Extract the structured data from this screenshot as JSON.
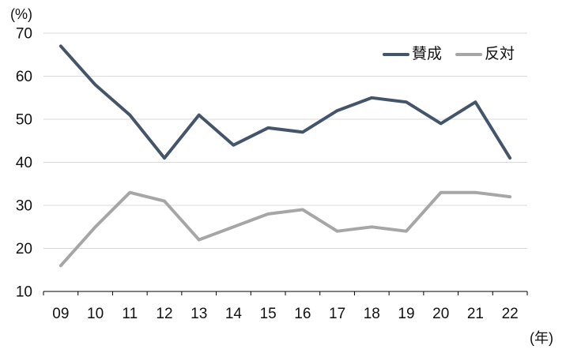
{
  "chart_data": {
    "type": "line",
    "categories": [
      "09",
      "10",
      "11",
      "12",
      "13",
      "14",
      "15",
      "16",
      "17",
      "18",
      "19",
      "20",
      "21",
      "22"
    ],
    "series": [
      {
        "name": "賛成",
        "color": "#44546A",
        "values": [
          67,
          58,
          51,
          41,
          51,
          44,
          48,
          47,
          52,
          55,
          54,
          49,
          54,
          41
        ]
      },
      {
        "name": "反対",
        "color": "#A6A6A6",
        "values": [
          16,
          25,
          33,
          31,
          22,
          25,
          28,
          29,
          24,
          25,
          24,
          33,
          33,
          32
        ]
      }
    ],
    "title": "",
    "xlabel": "(年)",
    "ylabel": "(%)",
    "ylim": [
      10,
      70
    ],
    "yticks": [
      10,
      20,
      30,
      40,
      50,
      60,
      70
    ],
    "grid": true,
    "legend_position": "top-right",
    "colors": {
      "gridline": "#D9D9D9",
      "axis": "#000000",
      "tick_text": "#111111",
      "background": "#FFFFFF"
    }
  }
}
